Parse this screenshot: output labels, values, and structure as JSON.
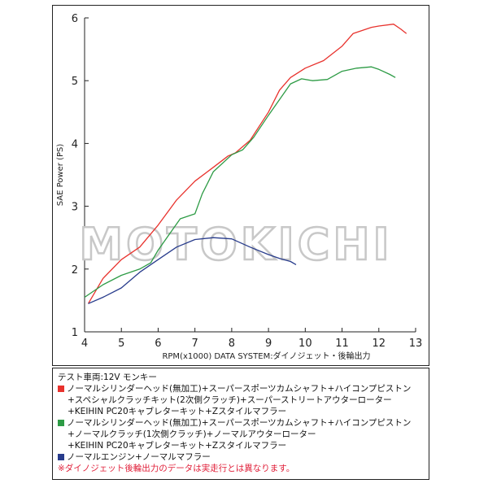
{
  "chart_data": {
    "type": "line",
    "ylabel": "SAE Power (PS)",
    "xlabel": "RPM(x1000) DATA SYSTEM:ダイノジェット・後輪出力",
    "xlim": [
      4,
      13
    ],
    "ylim": [
      1,
      6
    ],
    "x_ticks": [
      4,
      5,
      6,
      7,
      8,
      9,
      10,
      11,
      12,
      13
    ],
    "y_ticks": [
      1,
      2,
      3,
      4,
      5,
      6
    ],
    "grid": false,
    "watermark": "MOTOKICHI",
    "series": [
      {
        "color": "#e8322d",
        "points": [
          [
            4.1,
            1.45
          ],
          [
            4.5,
            1.85
          ],
          [
            5.0,
            2.15
          ],
          [
            5.5,
            2.35
          ],
          [
            6.0,
            2.7
          ],
          [
            6.5,
            3.1
          ],
          [
            7.0,
            3.4
          ],
          [
            7.5,
            3.62
          ],
          [
            7.9,
            3.8
          ],
          [
            8.1,
            3.85
          ],
          [
            8.5,
            4.05
          ],
          [
            9.0,
            4.5
          ],
          [
            9.3,
            4.85
          ],
          [
            9.6,
            5.05
          ],
          [
            10.0,
            5.2
          ],
          [
            10.5,
            5.32
          ],
          [
            11.0,
            5.55
          ],
          [
            11.3,
            5.75
          ],
          [
            11.8,
            5.85
          ],
          [
            12.0,
            5.87
          ],
          [
            12.4,
            5.9
          ],
          [
            12.6,
            5.82
          ],
          [
            12.75,
            5.75
          ]
        ]
      },
      {
        "color": "#2d9b45",
        "points": [
          [
            4.0,
            1.55
          ],
          [
            4.5,
            1.75
          ],
          [
            5.0,
            1.9
          ],
          [
            5.5,
            2.0
          ],
          [
            5.8,
            2.1
          ],
          [
            6.0,
            2.3
          ],
          [
            6.3,
            2.55
          ],
          [
            6.6,
            2.8
          ],
          [
            7.0,
            2.88
          ],
          [
            7.2,
            3.2
          ],
          [
            7.5,
            3.55
          ],
          [
            8.0,
            3.82
          ],
          [
            8.3,
            3.9
          ],
          [
            8.6,
            4.1
          ],
          [
            9.0,
            4.45
          ],
          [
            9.3,
            4.7
          ],
          [
            9.6,
            4.95
          ],
          [
            9.9,
            5.03
          ],
          [
            10.2,
            5.0
          ],
          [
            10.6,
            5.02
          ],
          [
            11.0,
            5.15
          ],
          [
            11.4,
            5.2
          ],
          [
            11.8,
            5.22
          ],
          [
            12.0,
            5.18
          ],
          [
            12.3,
            5.1
          ],
          [
            12.45,
            5.05
          ]
        ]
      },
      {
        "color": "#283c8c",
        "points": [
          [
            4.1,
            1.45
          ],
          [
            4.5,
            1.55
          ],
          [
            5.0,
            1.7
          ],
          [
            5.5,
            1.95
          ],
          [
            6.0,
            2.15
          ],
          [
            6.5,
            2.35
          ],
          [
            7.0,
            2.47
          ],
          [
            7.5,
            2.5
          ],
          [
            8.0,
            2.48
          ],
          [
            8.5,
            2.35
          ],
          [
            9.0,
            2.23
          ],
          [
            9.3,
            2.17
          ],
          [
            9.6,
            2.12
          ],
          [
            9.75,
            2.07
          ]
        ]
      }
    ]
  },
  "legend": {
    "header": "テスト車両:12V モンキー",
    "entries": [
      {
        "color": "#e8322d",
        "lines": [
          "ノーマルシリンダーヘッド(無加工)+スーパースポーツカムシャフト+ハイコンプピストン",
          "+スペシャルクラッチキット(2次側クラッチ)+スーパーストリートアウターローター",
          "+KEIHIN PC20キャブレターキット+Zスタイルマフラー"
        ]
      },
      {
        "color": "#2d9b45",
        "lines": [
          "ノーマルシリンダーヘッド(無加工)+スーパースポーツカムシャフト+ハイコンプピストン",
          "+ノーマルクラッチ(1次側クラッチ)+ノーマルアウターローター",
          "+KEIHIN PC20キャブレターキット+Zスタイルマフラー"
        ]
      },
      {
        "color": "#283c8c",
        "lines": [
          "ノーマルエンジン+ノーマルマフラー"
        ]
      }
    ],
    "note": "※ダイノジェット後輪出力のデータは実走行とは異なります。"
  }
}
